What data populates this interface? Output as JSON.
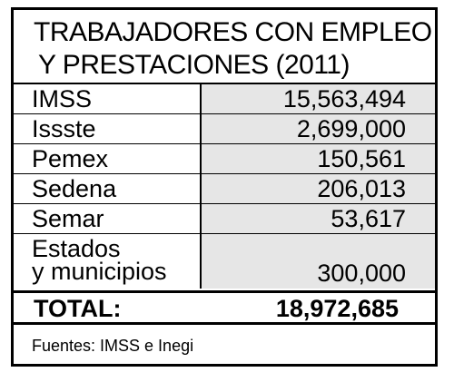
{
  "title": {
    "line1": "TRABAJADORES CON EMPLEO",
    "line2": "Y PRESTACIONES (2011)"
  },
  "rows": [
    {
      "label": "IMSS",
      "value": "15,563,494"
    },
    {
      "label": "Issste",
      "value": "2,699,000"
    },
    {
      "label": "Pemex",
      "value": "150,561"
    },
    {
      "label": "Sedena",
      "value": "206,013"
    },
    {
      "label": "Semar",
      "value": "53,617"
    },
    {
      "label_line1": "Estados",
      "label_line2": "y municipios",
      "value": "300,000"
    }
  ],
  "total": {
    "label": "TOTAL:",
    "value": "18,972,685"
  },
  "source": "Fuentes: IMSS e Inegi",
  "colors": {
    "border": "#000000",
    "value_cell_bg": "#e6e6e6",
    "background": "#ffffff"
  }
}
